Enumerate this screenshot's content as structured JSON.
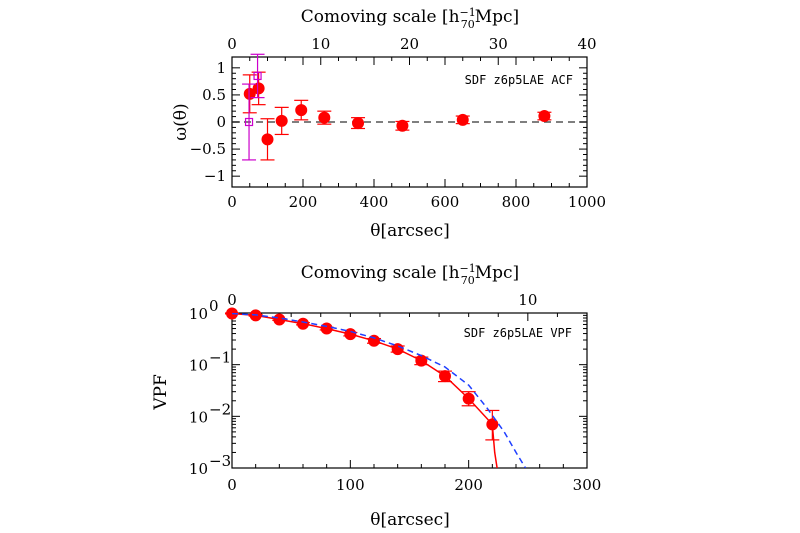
{
  "chart_data": [
    {
      "type": "scatter",
      "panel_label": "SDF z6p5LAE ACF",
      "xlabel": "θ[arcsec]",
      "ylabel": "ω(θ)",
      "top_axis_label": "Comoving scale [h",
      "top_axis_label_sub": "70",
      "top_axis_label_sup": "−1",
      "top_axis_label_end": "Mpc]",
      "xlim": [
        0,
        1000
      ],
      "ylim": [
        -1.2,
        1.2
      ],
      "xticks": [
        0,
        200,
        400,
        600,
        800,
        1000
      ],
      "yticks": [
        -1,
        -0.5,
        0,
        0.5,
        1
      ],
      "xtick_labels": [
        "0",
        "200",
        "400",
        "600",
        "800",
        "1000"
      ],
      "ytick_labels": [
        "−1",
        "−0.5",
        "0",
        "0.5",
        "1"
      ],
      "top_xlim": [
        0,
        40
      ],
      "top_xticks": [
        0,
        10,
        20,
        30,
        40
      ],
      "top_xtick_labels": [
        "0",
        "10",
        "20",
        "30",
        "40"
      ],
      "reference_line": {
        "y": 0,
        "style": "dashed",
        "color": "#555555"
      },
      "series": [
        {
          "marker": "filled-circle",
          "color": "#ff0000",
          "x": [
            50,
            75,
            100,
            140,
            195,
            260,
            355,
            480,
            650,
            880
          ],
          "y": [
            0.52,
            0.62,
            -0.32,
            0.02,
            0.22,
            0.08,
            -0.02,
            -0.07,
            0.04,
            0.11
          ],
          "err": [
            0.35,
            0.3,
            0.38,
            0.25,
            0.18,
            0.12,
            0.1,
            0.08,
            0.07,
            0.07
          ]
        },
        {
          "marker": "open-square",
          "color": "#cc00cc",
          "x": [
            48,
            72
          ],
          "y": [
            0.0,
            0.85
          ],
          "err": [
            0.7,
            0.4
          ]
        }
      ]
    },
    {
      "type": "line",
      "panel_label": "SDF z6p5LAE VPF",
      "xlabel": "θ[arcsec]",
      "ylabel": "VPF",
      "top_axis_label": "Comoving scale [h",
      "top_axis_label_sub": "70",
      "top_axis_label_sup": "−1",
      "top_axis_label_end": "Mpc]",
      "xlim": [
        0,
        300
      ],
      "ylim": [
        0.001,
        1
      ],
      "yscale": "log",
      "xticks": [
        0,
        100,
        200,
        300
      ],
      "xtick_labels": [
        "0",
        "100",
        "200",
        "300"
      ],
      "ytick_values": [
        1,
        0.1,
        0.01,
        0.001
      ],
      "ytick_base": "10",
      "ytick_exponents": [
        "0",
        "−1",
        "−2",
        "−3"
      ],
      "top_xticks_arcsec": [
        0,
        250
      ],
      "top_xtick_labels": [
        "0",
        "10"
      ],
      "series": [
        {
          "marker": "filled-circle",
          "color": "#ff0000",
          "line": "solid",
          "x": [
            0,
            20,
            40,
            60,
            80,
            100,
            120,
            140,
            160,
            180,
            200,
            220
          ],
          "y": [
            0.98,
            0.9,
            0.75,
            0.62,
            0.5,
            0.39,
            0.29,
            0.2,
            0.12,
            0.06,
            0.022,
            0.007
          ],
          "err_hi": [
            1.0,
            0.93,
            0.78,
            0.65,
            0.53,
            0.42,
            0.32,
            0.23,
            0.14,
            0.075,
            0.03,
            0.013
          ],
          "err_lo": [
            0.96,
            0.87,
            0.72,
            0.59,
            0.47,
            0.36,
            0.26,
            0.175,
            0.1,
            0.047,
            0.016,
            0.0035
          ],
          "line_x": [
            0,
            20,
            40,
            60,
            80,
            100,
            120,
            140,
            160,
            180,
            200,
            220,
            222,
            224
          ],
          "line_y": [
            0.98,
            0.9,
            0.75,
            0.62,
            0.5,
            0.39,
            0.29,
            0.2,
            0.12,
            0.06,
            0.022,
            0.007,
            0.002,
            0.001
          ]
        },
        {
          "name": "",
          "color": "#1f3fff",
          "line": "dashed",
          "x": [
            0,
            20,
            40,
            60,
            80,
            100,
            120,
            140,
            160,
            180,
            200,
            215,
            230,
            240,
            248
          ],
          "y": [
            0.98,
            0.92,
            0.8,
            0.67,
            0.55,
            0.44,
            0.33,
            0.23,
            0.15,
            0.09,
            0.04,
            0.015,
            0.005,
            0.002,
            0.001
          ]
        }
      ]
    }
  ]
}
